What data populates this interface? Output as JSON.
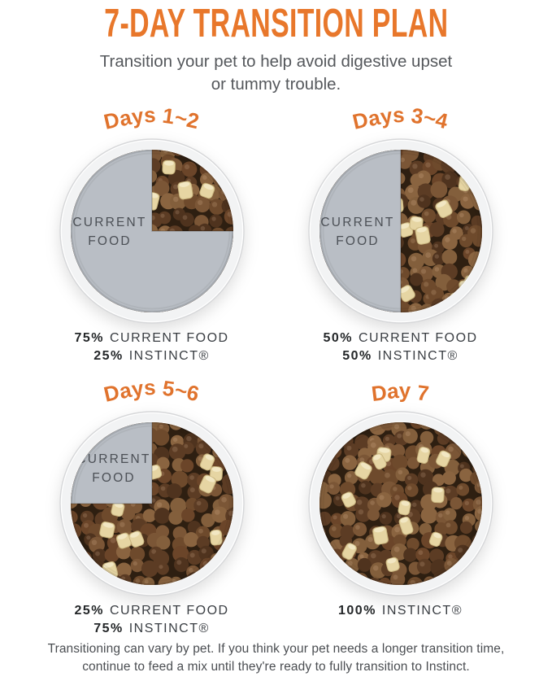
{
  "header": {
    "title": "7-DAY TRANSITION PLAN",
    "subtitle_line1": "Transition your pet to help avoid digestive upset",
    "subtitle_line2": "or tummy trouble."
  },
  "bowls": [
    {
      "heading": "Days 1~2",
      "fill_layout": "quarter-instinct",
      "current_food_pct": 75,
      "instinct_pct": 25,
      "bowl_label": {
        "line1": "CURRENT",
        "line2": "FOOD"
      },
      "caption_lines": [
        {
          "bold": "75%",
          "text": "CURRENT FOOD"
        },
        {
          "bold": "25%",
          "text": "INSTINCT®"
        }
      ]
    },
    {
      "heading": "Days 3~4",
      "fill_layout": "half-instinct",
      "current_food_pct": 50,
      "instinct_pct": 50,
      "bowl_label": {
        "line1": "CURRENT",
        "line2": "FOOD"
      },
      "caption_lines": [
        {
          "bold": "50%",
          "text": "CURRENT FOOD"
        },
        {
          "bold": "50%",
          "text": "INSTINCT®"
        }
      ]
    },
    {
      "heading": "Days 5~6",
      "fill_layout": "three-quarter-instinct",
      "current_food_pct": 25,
      "instinct_pct": 75,
      "bowl_label": {
        "line1": "CURRENT",
        "line2": "FOOD"
      },
      "caption_lines": [
        {
          "bold": "25%",
          "text": "CURRENT FOOD"
        },
        {
          "bold": "75%",
          "text": "INSTINCT®"
        }
      ]
    },
    {
      "heading": "Day 7",
      "fill_layout": "full-instinct",
      "current_food_pct": 0,
      "instinct_pct": 100,
      "bowl_label": null,
      "caption_lines": [
        {
          "bold": "100%",
          "text": "INSTINCT®"
        }
      ]
    }
  ],
  "footer": {
    "line1": "Transitioning can vary by pet. If you think your pet needs a longer transition time,",
    "line2": "continue to feed a mix until they're ready to fully transition to Instinct."
  },
  "colors": {
    "accent_orange": "#E8772B",
    "heading_orange": "#E0732D",
    "current_food_gray": "#B9BEC5",
    "bowl_label_gray": "#4C5056",
    "caption_text": "#3A3E43",
    "caption_bold": "#242729",
    "subtitle_gray": "#55585C",
    "footer_gray": "#4B4E52",
    "bowl_rim_white": "#FFFFFF",
    "bowl_rim_edge": "#D6D7D9",
    "kibble_base": "#2E1F11",
    "kibble_browns": [
      "#6E4A2C",
      "#5C3C24",
      "#7B5636",
      "#4F331E",
      "#835F3C",
      "#6B4529",
      "#8A6440"
    ],
    "kibble_cream": "#E6D5A3",
    "kibble_cream_edge": "#C9B57E",
    "kibble_cream_hi": "#F2E7C3"
  }
}
